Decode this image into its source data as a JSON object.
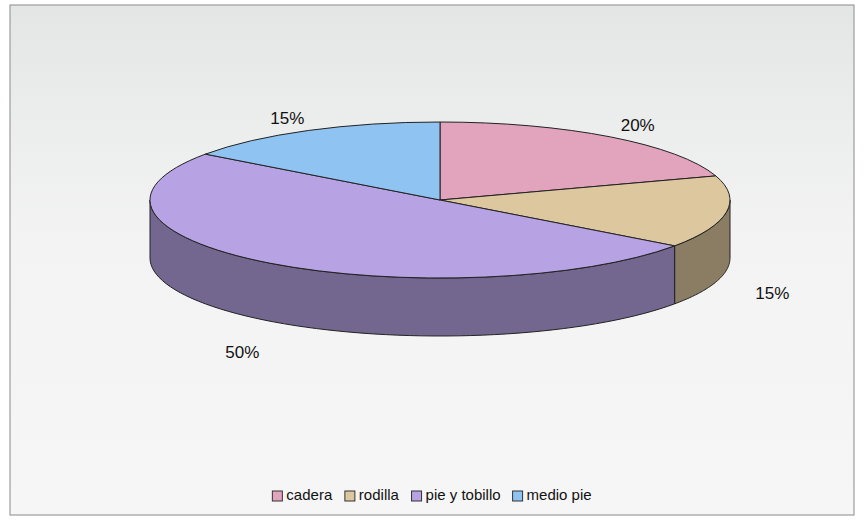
{
  "chart_data": {
    "type": "pie",
    "categories": [
      "cadera",
      "rodilla",
      "pie y tobillo",
      "medio pie"
    ],
    "values": [
      20,
      15,
      50,
      15
    ],
    "value_labels": [
      "20%",
      "15%",
      "50%",
      "15%"
    ],
    "colors": [
      "#e2a4bd",
      "#dcc79e",
      "#b7a2e3",
      "#8fc3f2"
    ],
    "data_labels": true,
    "legend": "bottom"
  }
}
